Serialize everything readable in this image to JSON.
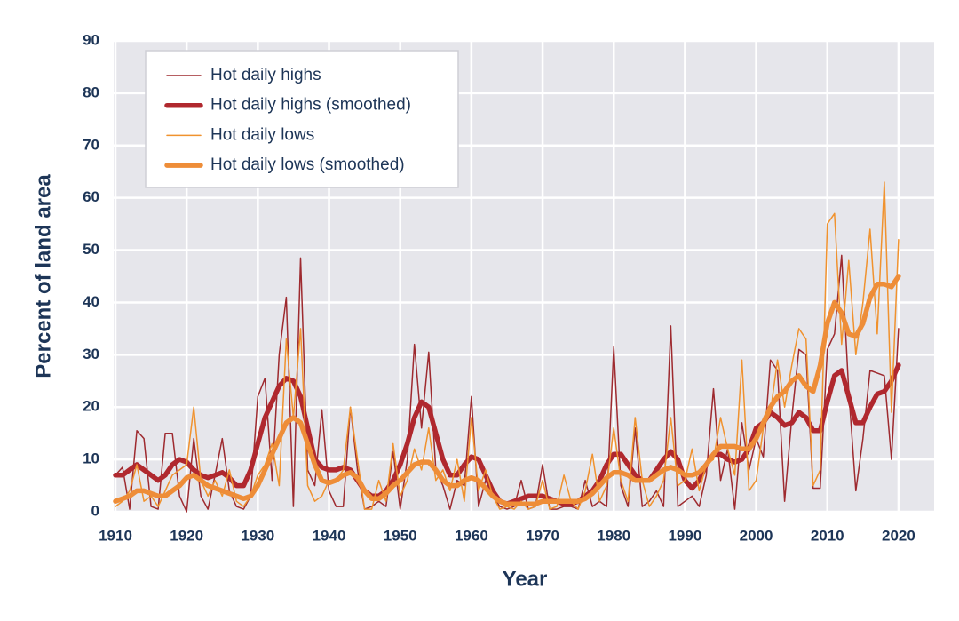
{
  "chart_data": {
    "type": "line",
    "xlabel": "Year",
    "ylabel": "Percent of land area",
    "x": [
      1910,
      1911,
      1912,
      1913,
      1914,
      1915,
      1916,
      1917,
      1918,
      1919,
      1920,
      1921,
      1922,
      1923,
      1924,
      1925,
      1926,
      1927,
      1928,
      1929,
      1930,
      1931,
      1932,
      1933,
      1934,
      1935,
      1936,
      1937,
      1938,
      1939,
      1940,
      1941,
      1942,
      1943,
      1944,
      1945,
      1946,
      1947,
      1948,
      1949,
      1950,
      1951,
      1952,
      1953,
      1954,
      1955,
      1956,
      1957,
      1958,
      1959,
      1960,
      1961,
      1962,
      1963,
      1964,
      1965,
      1966,
      1967,
      1968,
      1969,
      1970,
      1971,
      1972,
      1973,
      1974,
      1975,
      1976,
      1977,
      1978,
      1979,
      1980,
      1981,
      1982,
      1983,
      1984,
      1985,
      1986,
      1987,
      1988,
      1989,
      1990,
      1991,
      1992,
      1993,
      1994,
      1995,
      1996,
      1997,
      1998,
      1999,
      2000,
      2001,
      2002,
      2003,
      2004,
      2005,
      2006,
      2007,
      2008,
      2009,
      2010,
      2011,
      2012,
      2013,
      2014,
      2015,
      2016,
      2017,
      2018,
      2019,
      2020
    ],
    "series": [
      {
        "name": "Hot daily highs",
        "color": "#9e2a2f",
        "values": [
          7,
          8.5,
          0.5,
          15.5,
          14,
          1,
          0.5,
          15,
          15,
          3,
          0,
          14,
          3,
          0.5,
          7,
          14,
          4,
          1,
          0.5,
          3,
          22,
          25.5,
          6,
          30,
          41,
          1,
          48.5,
          8,
          5,
          19.5,
          4,
          1,
          1,
          20,
          8,
          0.5,
          1,
          2,
          1,
          11.5,
          0.5,
          10,
          32,
          16,
          30.5,
          8,
          5,
          0.5,
          6,
          5,
          22,
          1,
          6,
          3,
          1,
          0.5,
          1,
          6,
          0.5,
          1,
          9,
          0.5,
          0.5,
          1,
          1,
          0.5,
          6,
          1,
          2,
          1,
          31.5,
          5,
          1,
          16,
          1,
          2,
          4,
          1,
          35.5,
          1,
          2,
          3,
          1,
          7,
          23.5,
          6,
          12,
          0.5,
          17,
          8,
          14,
          10.5,
          29,
          27,
          2,
          18,
          31,
          30,
          4.5,
          4.5,
          31,
          34,
          49,
          23,
          4,
          14,
          27,
          26.5,
          26,
          10,
          35
        ]
      },
      {
        "name": "Hot daily highs (smoothed)",
        "color": "#b0282e",
        "values": [
          7,
          7,
          8,
          9,
          8,
          7,
          6,
          7,
          9,
          10,
          9.5,
          8,
          7,
          6.5,
          7,
          7.5,
          6.5,
          5,
          5,
          8,
          13,
          18,
          21,
          24,
          25.5,
          25,
          22,
          16,
          10,
          8.5,
          8,
          8,
          8.5,
          8,
          6,
          4,
          3,
          3,
          4,
          6,
          9,
          13,
          18,
          21,
          20,
          15,
          10,
          7,
          7,
          9,
          10.5,
          10,
          7,
          4,
          2,
          1.5,
          2,
          2.5,
          3,
          3,
          3,
          2.5,
          2,
          1.5,
          1.5,
          2,
          3,
          4,
          6,
          9,
          11,
          11,
          9,
          7,
          6,
          6,
          8,
          10,
          11.5,
          10,
          6,
          4.5,
          6,
          9,
          11,
          11,
          10,
          9.5,
          10,
          12,
          16,
          17,
          19,
          18,
          16.5,
          17,
          19,
          18,
          15.5,
          15.5,
          21,
          26,
          27,
          22,
          17,
          17,
          20,
          22.5,
          23,
          25,
          28
        ]
      },
      {
        "name": "Hot daily lows",
        "color": "#f0922e",
        "values": [
          1,
          2,
          4,
          9,
          2,
          3,
          1,
          4,
          7,
          8,
          9,
          20,
          6,
          3,
          6,
          3,
          8,
          2,
          1,
          3,
          7,
          9,
          13,
          5,
          33,
          18,
          35,
          5,
          2,
          3,
          6,
          6,
          8,
          20,
          10,
          0.5,
          0.5,
          6,
          2,
          13,
          3,
          6,
          12,
          8,
          16,
          6,
          8,
          4,
          10,
          2,
          18,
          4,
          8,
          3,
          0.5,
          1,
          0.5,
          2,
          0.5,
          1,
          6,
          0.5,
          1,
          7,
          2,
          0.5,
          4,
          11,
          2,
          5,
          16,
          6,
          2,
          18,
          6,
          1,
          3,
          6,
          18,
          5,
          6,
          12,
          4,
          9,
          10,
          18,
          12,
          7,
          29,
          4,
          6,
          16,
          19,
          29,
          20,
          28,
          35,
          33,
          5,
          8,
          55,
          57,
          32,
          48,
          30,
          40,
          54,
          34,
          63,
          19,
          52
        ]
      },
      {
        "name": "Hot daily lows (smoothed)",
        "color": "#ee8d38",
        "values": [
          2,
          2.5,
          3,
          4,
          4,
          3.5,
          3,
          3,
          4,
          5,
          6.5,
          7,
          6,
          5,
          4.5,
          4,
          3.5,
          3,
          2.5,
          3,
          5,
          8,
          11,
          14,
          17,
          18,
          17,
          13,
          9,
          6,
          5.5,
          6,
          7,
          7.5,
          6.5,
          4,
          2.5,
          2.5,
          3.5,
          5,
          6,
          7.5,
          9,
          9.5,
          9.5,
          8,
          6,
          5,
          5,
          6,
          6.5,
          6,
          4.5,
          3,
          2,
          1.5,
          1.5,
          1.5,
          1.5,
          1.5,
          2,
          2,
          2,
          2,
          2,
          2,
          2.5,
          3.5,
          5,
          6.5,
          7.5,
          7.5,
          7,
          6,
          6,
          6,
          7,
          8,
          8.5,
          8,
          7,
          7,
          7.5,
          9,
          11,
          12.5,
          12.5,
          12.5,
          12,
          12,
          14,
          17,
          20,
          22,
          23,
          25,
          26,
          24,
          23,
          28,
          36,
          40,
          38,
          34,
          33.5,
          36,
          41,
          43.5,
          43.5,
          43,
          45
        ]
      }
    ],
    "xlim": [
      1910,
      2025
    ],
    "xticks": [
      1910,
      1920,
      1930,
      1940,
      1950,
      1960,
      1970,
      1980,
      1990,
      2000,
      2010,
      2020
    ],
    "ylim": [
      0,
      90
    ],
    "yticks": [
      0,
      10,
      20,
      30,
      40,
      50,
      60,
      70,
      80,
      90
    ],
    "grid": true,
    "legend": "upper left"
  }
}
